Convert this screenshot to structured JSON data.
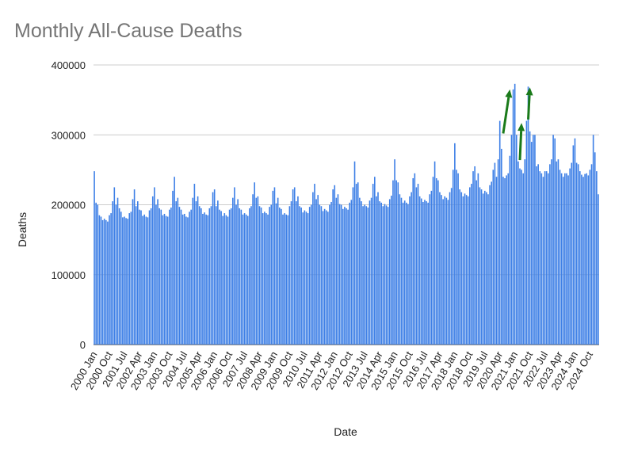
{
  "chart_data": {
    "type": "bar",
    "title": "Monthly All-Cause Deaths",
    "xlabel": "Date",
    "ylabel": "Deaths",
    "ylim": [
      0,
      400000
    ],
    "y_ticks": [
      "0",
      "100000",
      "200000",
      "300000",
      "400000"
    ],
    "grid": true,
    "legend": "none",
    "bar_color": "#3d7fe6",
    "x_start": "2000 Jan",
    "x_end": "2025 Mar",
    "x_tick_every_months": 9,
    "x_tick_labels": [
      "2000 Jan",
      "2000 Oct",
      "2001 Jul",
      "2002 Apr",
      "2003 Jan",
      "2003 Oct",
      "2004 Jul",
      "2005 Apr",
      "2006 Jan",
      "2006 Oct",
      "2007 Jul",
      "2008 Apr",
      "2009 Jan",
      "2009 Oct",
      "2010 Jul",
      "2011 Apr",
      "2012 Jan",
      "2012 Oct",
      "2013 Jul",
      "2014 Apr",
      "2015 Jan",
      "2015 Oct",
      "2016 Jul",
      "2017 Apr",
      "2018 Jan",
      "2018 Oct",
      "2019 Jul",
      "2020 Apr",
      "2021 Jan",
      "2021 Oct",
      "2022 Jul",
      "2023 Apr",
      "2024 Jan",
      "2024 Oct"
    ],
    "values": [
      248000,
      203000,
      200000,
      185000,
      183000,
      178000,
      180000,
      178000,
      176000,
      185000,
      188000,
      205000,
      225000,
      200000,
      210000,
      195000,
      190000,
      182000,
      183000,
      181000,
      180000,
      188000,
      190000,
      208000,
      222000,
      198000,
      205000,
      193000,
      192000,
      184000,
      186000,
      183000,
      182000,
      192000,
      195000,
      212000,
      225000,
      200000,
      208000,
      195000,
      193000,
      185000,
      187000,
      184000,
      183000,
      193000,
      196000,
      220000,
      240000,
      205000,
      210000,
      197000,
      193000,
      186000,
      187000,
      183000,
      182000,
      190000,
      193000,
      210000,
      230000,
      205000,
      212000,
      198000,
      195000,
      187000,
      189000,
      186000,
      185000,
      195000,
      198000,
      218000,
      222000,
      198000,
      206000,
      193000,
      191000,
      184000,
      188000,
      185000,
      183000,
      193000,
      195000,
      210000,
      225000,
      200000,
      208000,
      195000,
      193000,
      186000,
      188000,
      186000,
      184000,
      195000,
      198000,
      215000,
      232000,
      210000,
      212000,
      198000,
      196000,
      188000,
      190000,
      188000,
      186000,
      197000,
      200000,
      220000,
      225000,
      202000,
      210000,
      196000,
      194000,
      186000,
      188000,
      186000,
      185000,
      198000,
      205000,
      222000,
      225000,
      205000,
      212000,
      198000,
      196000,
      189000,
      192000,
      190000,
      188000,
      197000,
      200000,
      218000,
      230000,
      208000,
      214000,
      200000,
      198000,
      191000,
      194000,
      192000,
      190000,
      200000,
      204000,
      222000,
      228000,
      210000,
      215000,
      201000,
      200000,
      194000,
      197000,
      195000,
      193000,
      203000,
      207000,
      225000,
      262000,
      230000,
      232000,
      210000,
      205000,
      198000,
      200000,
      198000,
      196000,
      206000,
      210000,
      230000,
      240000,
      212000,
      218000,
      205000,
      203000,
      198000,
      201000,
      199000,
      197000,
      208000,
      213000,
      235000,
      265000,
      235000,
      232000,
      215000,
      210000,
      203000,
      206000,
      203000,
      201000,
      212000,
      218000,
      238000,
      245000,
      225000,
      230000,
      212000,
      209000,
      204000,
      207000,
      205000,
      203000,
      215000,
      220000,
      240000,
      262000,
      238000,
      235000,
      218000,
      214000,
      208000,
      212000,
      210000,
      207000,
      218000,
      224000,
      250000,
      288000,
      250000,
      245000,
      222000,
      218000,
      212000,
      216000,
      214000,
      212000,
      225000,
      230000,
      248000,
      255000,
      235000,
      245000,
      225000,
      222000,
      216000,
      220000,
      218000,
      215000,
      228000,
      233000,
      250000,
      260000,
      240000,
      265000,
      320000,
      280000,
      240000,
      238000,
      242000,
      245000,
      270000,
      300000,
      365000,
      373000,
      300000,
      262000,
      252000,
      250000,
      245000,
      265000,
      320000,
      369000,
      305000,
      290000,
      300000,
      300000,
      255000,
      258000,
      248000,
      245000,
      240000,
      248000,
      248000,
      245000,
      258000,
      265000,
      300000,
      295000,
      262000,
      265000,
      250000,
      245000,
      240000,
      245000,
      245000,
      242000,
      252000,
      260000,
      285000,
      295000,
      260000,
      258000,
      248000,
      243000,
      240000,
      244000,
      245000,
      242000,
      250000,
      258000,
      300000,
      275000,
      248000,
      215000
    ],
    "annotations": [
      {
        "type": "arrow",
        "color": "#1a7a1a",
        "from_month_index": 245,
        "from_value": 302000,
        "to_month_index": 249,
        "to_value": 365000
      },
      {
        "type": "arrow",
        "color": "#1a7a1a",
        "from_month_index": 255,
        "from_value": 264000,
        "to_month_index": 256,
        "to_value": 317000
      },
      {
        "type": "arrow",
        "color": "#1a7a1a",
        "from_month_index": 260,
        "from_value": 322000,
        "to_month_index": 261,
        "to_value": 368000
      }
    ]
  }
}
